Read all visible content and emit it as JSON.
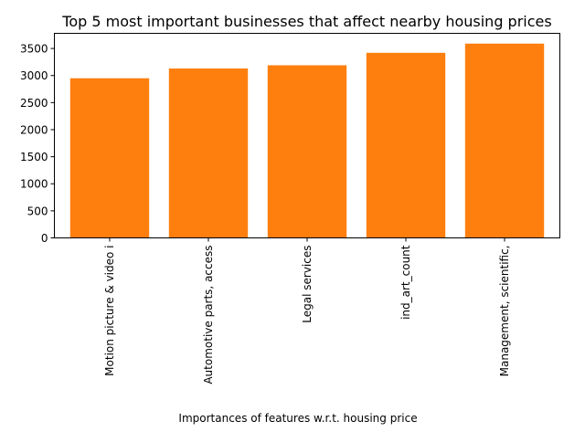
{
  "chart_data": {
    "type": "bar",
    "title": "Top 5 most important businesses that affect nearby housing prices",
    "xlabel": "Importances of features w.r.t. housing price",
    "ylabel": "",
    "categories": [
      "Motion picture & video i",
      "Automotive parts, access",
      "Legal services",
      "ind_art_count",
      "Management, scientific,"
    ],
    "values": [
      2950,
      3130,
      3190,
      3420,
      3590
    ],
    "ylim": [
      0,
      3780
    ],
    "yticks": [
      0,
      500,
      1000,
      1500,
      2000,
      2500,
      3000,
      3500
    ],
    "grid": false,
    "legend": "none",
    "bar_color": "#ff7f0e"
  }
}
